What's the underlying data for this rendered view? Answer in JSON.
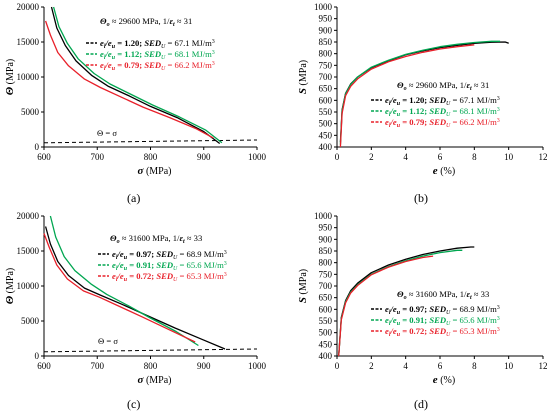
{
  "captions": [
    "(a)",
    "(b)",
    "(c)",
    "(d)"
  ],
  "colors": {
    "black": "#000000",
    "green": "#00a650",
    "red": "#e8202a",
    "axis": "#000000"
  },
  "chart_data": [
    {
      "panel": "a",
      "type": "line",
      "xlabel": {
        "sym": "σ",
        "unit": " (MPa)"
      },
      "ylabel": {
        "sym": "Θ",
        "unit": " (MPa)"
      },
      "xlim": [
        600,
        1000
      ],
      "ylim": [
        0,
        20000
      ],
      "xticks": [
        "600",
        "700",
        "800",
        "900",
        "1000"
      ],
      "yticks": [
        "0",
        "5000",
        "10000",
        "15000",
        "20000"
      ],
      "header": {
        "t1": "Θ",
        "t2": "o",
        "t3": " ≈ 29600 MPa,  1/",
        "t4": "ε",
        "t5": "t",
        "t6": " ≈ 31"
      },
      "ref_line": {
        "label": "Θ  =  σ",
        "x": [
          600,
          1000
        ],
        "y": [
          600,
          1000
        ]
      },
      "series": [
        {
          "color": "black",
          "r": "1.20",
          "sed": " = 67.1 MJ/m",
          "x": [
            614,
            624,
            640,
            660,
            690,
            720,
            760,
            800,
            850,
            900,
            930
          ],
          "y": [
            20000,
            17000,
            14500,
            12300,
            10200,
            8700,
            7300,
            5800,
            4200,
            2200,
            500
          ]
        },
        {
          "color": "green",
          "r": "1.12",
          "sed": " = 68.1 MJ/m",
          "x": [
            618,
            628,
            644,
            664,
            694,
            724,
            764,
            804,
            854,
            904,
            934
          ],
          "y": [
            20000,
            17200,
            14800,
            12600,
            10500,
            9000,
            7500,
            6000,
            4300,
            2400,
            600
          ]
        },
        {
          "color": "red",
          "r": "0.79",
          "sed": " = 66.2 MJ/m",
          "x": [
            603,
            612,
            626,
            646,
            676,
            706,
            746,
            786,
            836,
            886,
            918
          ],
          "y": [
            18000,
            16000,
            13500,
            11600,
            9700,
            8500,
            7100,
            5700,
            4200,
            2600,
            1300
          ]
        }
      ]
    },
    {
      "panel": "b",
      "type": "line",
      "xlabel": {
        "sym": "e",
        "unit": " (%)"
      },
      "ylabel": {
        "sym": "S",
        "unit": " (MPa)"
      },
      "xlim": [
        0,
        12
      ],
      "ylim": [
        400,
        1000
      ],
      "xticks": [
        "0",
        "2",
        "4",
        "6",
        "8",
        "10",
        "12"
      ],
      "yticks": [
        "400",
        "450",
        "500",
        "550",
        "600",
        "650",
        "700",
        "750",
        "800",
        "850",
        "900",
        "950",
        "1000"
      ],
      "header": {
        "t1": "Θ",
        "t2": "o",
        "t3": " ≈ 29600 MPa,  1/",
        "t4": "ε",
        "t5": "t",
        "t6": " ≈ 31"
      },
      "series": [
        {
          "color": "black",
          "r": "1.20",
          "sed": " = 67.1 MJ/m",
          "x": [
            0.2,
            0.3,
            0.5,
            0.8,
            1.2,
            2,
            3,
            4,
            5,
            6,
            7,
            8,
            9,
            9.8,
            10
          ],
          "y": [
            420,
            560,
            630,
            670,
            700,
            740,
            770,
            795,
            812,
            826,
            836,
            844,
            849,
            850,
            845
          ]
        },
        {
          "color": "green",
          "r": "1.12",
          "sed": " = 68.1 MJ/m",
          "x": [
            0.2,
            0.3,
            0.5,
            0.8,
            1.2,
            2,
            3,
            4,
            5,
            6,
            7,
            8,
            9,
            9.5
          ],
          "y": [
            410,
            555,
            628,
            668,
            700,
            742,
            772,
            797,
            815,
            830,
            840,
            848,
            853,
            853
          ]
        },
        {
          "color": "red",
          "r": "0.79",
          "sed": " = 66.2 MJ/m",
          "x": [
            0.2,
            0.3,
            0.5,
            0.8,
            1.2,
            2,
            3,
            4,
            5,
            6,
            7,
            8
          ],
          "y": [
            400,
            545,
            620,
            660,
            692,
            734,
            765,
            788,
            806,
            820,
            830,
            838
          ]
        }
      ]
    },
    {
      "panel": "c",
      "type": "line",
      "xlabel": {
        "sym": "σ",
        "unit": " (MPa)"
      },
      "ylabel": {
        "sym": "Θ",
        "unit": " (MPa)"
      },
      "xlim": [
        600,
        1000
      ],
      "ylim": [
        0,
        20000
      ],
      "xticks": [
        "600",
        "700",
        "800",
        "900",
        "1000"
      ],
      "yticks": [
        "0",
        "5000",
        "10000",
        "15000",
        "20000"
      ],
      "header": {
        "t1": "Θ",
        "t2": "o",
        "t3": " ≈ 31600 MPa,  1/",
        "t4": "ε",
        "t5": "t",
        "t6": " ≈ 33"
      },
      "ref_line": {
        "label": "Θ  =  σ",
        "x": [
          600,
          1000
        ],
        "y": [
          600,
          1000
        ]
      },
      "series": [
        {
          "color": "black",
          "r": "0.97",
          "sed": " = 68.9 MJ/m",
          "x": [
            603,
            612,
            626,
            646,
            676,
            706,
            746,
            796,
            846,
            896,
            940
          ],
          "y": [
            18500,
            16000,
            13500,
            11500,
            9700,
            8700,
            7400,
            5700,
            4000,
            2400,
            1000
          ]
        },
        {
          "color": "green",
          "r": "0.91",
          "sed": " = 65.6 MJ/m",
          "x": [
            612,
            622,
            638,
            658,
            688,
            718,
            758,
            798,
            848,
            890
          ],
          "y": [
            20000,
            17000,
            14200,
            12200,
            10300,
            8800,
            7200,
            5500,
            3500,
            1500
          ]
        },
        {
          "color": "red",
          "r": "0.72",
          "sed": " = 65.3 MJ/m",
          "x": [
            600,
            610,
            624,
            644,
            674,
            704,
            744,
            784,
            834,
            884
          ],
          "y": [
            17500,
            15500,
            13000,
            11000,
            9300,
            8400,
            7000,
            5600,
            3800,
            2000
          ]
        }
      ]
    },
    {
      "panel": "d",
      "type": "line",
      "xlabel": {
        "sym": "e",
        "unit": " (%)"
      },
      "ylabel": {
        "sym": "S",
        "unit": " (MPa)"
      },
      "xlim": [
        0,
        12
      ],
      "ylim": [
        400,
        1000
      ],
      "xticks": [
        "0",
        "2",
        "4",
        "6",
        "8",
        "10",
        "12"
      ],
      "yticks": [
        "400",
        "450",
        "500",
        "550",
        "600",
        "650",
        "700",
        "750",
        "800",
        "850",
        "900",
        "950",
        "1000"
      ],
      "header": {
        "t1": "Θ",
        "t2": "o",
        "t3": " ≈ 31600 MPa,  1/",
        "t4": "ε",
        "t5": "t",
        "t6": " ≈ 33"
      },
      "series": [
        {
          "color": "black",
          "r": "0.97",
          "sed": " = 68.9 MJ/m",
          "x": [
            0.1,
            0.25,
            0.5,
            0.8,
            1.2,
            2,
            3,
            4,
            5,
            6,
            7,
            7.8,
            8
          ],
          "y": [
            400,
            565,
            638,
            680,
            712,
            757,
            790,
            815,
            835,
            850,
            862,
            867,
            867
          ]
        },
        {
          "color": "green",
          "r": "0.91",
          "sed": " = 65.6 MJ/m",
          "x": [
            0.1,
            0.25,
            0.5,
            0.8,
            1.2,
            2,
            3,
            4,
            5,
            6,
            7,
            7.3
          ],
          "y": [
            400,
            560,
            633,
            674,
            705,
            750,
            783,
            808,
            828,
            843,
            853,
            853
          ]
        },
        {
          "color": "red",
          "r": "0.72",
          "sed": " = 65.3 MJ/m",
          "x": [
            0.1,
            0.25,
            0.5,
            0.8,
            1.2,
            2,
            3,
            4,
            5,
            5.6
          ],
          "y": [
            400,
            555,
            628,
            670,
            702,
            748,
            781,
            805,
            822,
            828
          ]
        }
      ]
    }
  ]
}
